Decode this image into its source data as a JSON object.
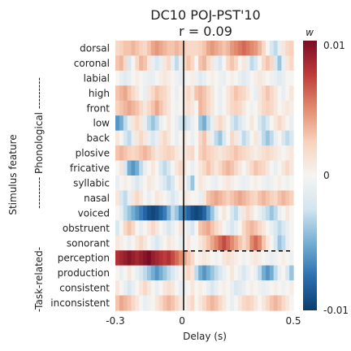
{
  "chart_data": {
    "type": "heatmap",
    "title": "DC10 POJ-PST'10",
    "subtitle": "r = 0.09",
    "xlabel": "Delay (s)",
    "ylabel": "Stimulus feature",
    "group_labels": {
      "phonological": "--------- Phonological ---------",
      "task": "-Task-related-"
    },
    "x_ticks": [
      "-0.3",
      "0",
      "0.5"
    ],
    "xlim": [
      -0.3,
      0.5
    ],
    "rows": [
      "dorsal",
      "coronal",
      "labial",
      "high",
      "front",
      "low",
      "back",
      "plosive",
      "fricative",
      "syllabic",
      "nasal",
      "voiced",
      "obstruent",
      "sonorant",
      "perception",
      "production",
      "consistent",
      "inconsistent"
    ],
    "colorbar": {
      "label": "w",
      "ticks": [
        "0.01",
        "0",
        "-0.01"
      ],
      "range": [
        -0.01,
        0.01
      ],
      "colormap": [
        "#0b3d6e",
        "#2b6fb0",
        "#74afd3",
        "#d2e5f0",
        "#f6f4f1",
        "#f8d2bd",
        "#e28a6c",
        "#bd3b3a",
        "#7a0c23"
      ]
    },
    "vertical_line_x": 0,
    "divider_after_row": "sonorant",
    "values": [
      [
        0.2,
        0.25,
        0.3,
        0.3,
        0.35,
        0.3,
        0.25,
        0.2,
        0.3,
        0.4,
        0.45,
        0.4,
        0.35,
        0.3,
        0.3,
        0.35,
        0.3,
        0.25,
        0.2,
        0.2,
        0.2,
        0.25,
        0.3,
        0.4,
        0.45,
        0.4,
        0.35,
        0.3,
        0.35,
        0.45,
        0.5,
        0.55,
        0.6,
        0.55,
        0.5,
        0.45,
        0.35,
        0.2,
        0.0,
        -0.2,
        -0.3,
        -0.1,
        0.1,
        0.2,
        0.25
      ],
      [
        0.3,
        0.35,
        0.2,
        -0.2,
        0.0,
        0.2,
        0.35,
        0.3,
        0.1,
        -0.1,
        -0.2,
        -0.1,
        0.1,
        0.2,
        -0.1,
        -0.3,
        -0.1,
        0.2,
        0.3,
        0.2,
        0.0,
        0.3,
        0.35,
        0.2,
        0.1,
        -0.1,
        -0.2,
        0.0,
        0.2,
        0.3,
        0.2,
        0.0,
        0.1,
        -0.1,
        -0.3,
        -0.2,
        0.0,
        0.2,
        0.3,
        0.2,
        -0.2,
        -0.4,
        -0.1,
        0.1,
        0.2
      ],
      [
        0.0,
        -0.1,
        -0.15,
        -0.1,
        0.0,
        0.05,
        0.0,
        -0.05,
        -0.1,
        -0.1,
        0.0,
        0.05,
        0.1,
        0.05,
        0.0,
        -0.05,
        -0.1,
        -0.05,
        0.0,
        0.05,
        -0.05,
        -0.15,
        -0.1,
        0.0,
        0.05,
        0.0,
        -0.05,
        -0.1,
        0.0,
        0.05,
        0.0,
        -0.1,
        -0.15,
        -0.1,
        0.0,
        0.05,
        0.1,
        0.05,
        0.0,
        -0.05,
        -0.1,
        -0.15,
        -0.1,
        0.0,
        0.0
      ],
      [
        0.3,
        0.35,
        0.4,
        0.3,
        0.2,
        0.1,
        0.0,
        -0.1,
        0.1,
        0.2,
        0.3,
        0.25,
        0.2,
        0.1,
        0.0,
        -0.1,
        0.0,
        0.1,
        0.2,
        0.1,
        0.3,
        0.35,
        0.3,
        0.2,
        0.1,
        0.0,
        -0.1,
        0.0,
        0.1,
        0.2,
        0.3,
        0.25,
        0.2,
        0.1,
        0.0,
        -0.1,
        0.1,
        0.2,
        0.3,
        0.2,
        0.1,
        0.0,
        -0.1,
        0.0,
        0.1
      ],
      [
        0.25,
        0.3,
        0.35,
        0.4,
        0.35,
        0.3,
        0.2,
        0.1,
        0.2,
        0.3,
        0.4,
        0.3,
        0.2,
        0.1,
        0.0,
        -0.05,
        0.0,
        0.1,
        0.15,
        0.1,
        0.0,
        0.35,
        0.3,
        0.2,
        0.1,
        0.0,
        -0.1,
        0.0,
        0.1,
        0.2,
        0.25,
        0.2,
        0.1,
        0.0,
        -0.05,
        0.0,
        0.1,
        0.2,
        0.25,
        0.2,
        0.1,
        0.0,
        0.05,
        0.1,
        0.05
      ],
      [
        -0.6,
        -0.5,
        -0.3,
        -0.1,
        0.1,
        0.2,
        0.1,
        -0.1,
        -0.3,
        -0.4,
        -0.3,
        -0.1,
        0.0,
        0.1,
        0.0,
        -0.1,
        -0.2,
        -0.3,
        -0.2,
        -0.1,
        0.0,
        -0.4,
        -0.5,
        -0.3,
        -0.1,
        0.1,
        0.2,
        0.1,
        0.0,
        -0.2,
        -0.3,
        -0.2,
        -0.1,
        0.0,
        0.1,
        0.0,
        -0.2,
        -0.3,
        -0.2,
        0.0,
        0.1,
        0.2,
        0.1,
        0.0,
        -0.1
      ],
      [
        0.1,
        0.0,
        -0.2,
        -0.3,
        -0.1,
        0.1,
        0.2,
        0.1,
        -0.1,
        -0.2,
        -0.1,
        0.1,
        0.2,
        0.1,
        0.0,
        -0.1,
        0.0,
        0.1,
        0.0,
        -0.1,
        0.0,
        0.2,
        0.3,
        0.1,
        -0.1,
        -0.3,
        -0.4,
        -0.2,
        0.0,
        0.2,
        0.1,
        -0.1,
        -0.3,
        -0.2,
        0.0,
        0.1,
        -0.1,
        -0.3,
        -0.4,
        -0.3,
        -0.1,
        0.0,
        -0.2,
        -0.3,
        -0.2
      ],
      [
        0.3,
        0.35,
        0.3,
        0.25,
        0.2,
        0.25,
        0.3,
        0.35,
        0.3,
        0.2,
        0.1,
        0.15,
        0.2,
        0.25,
        0.2,
        0.1,
        0.05,
        0.1,
        0.15,
        0.2,
        0.0,
        0.25,
        0.3,
        0.25,
        0.2,
        0.15,
        0.1,
        0.15,
        0.2,
        0.25,
        0.3,
        0.25,
        0.2,
        0.15,
        0.1,
        0.05,
        0.1,
        0.15,
        0.2,
        0.15,
        0.1,
        0.05,
        0.0,
        0.05,
        0.1
      ],
      [
        0.0,
        0.1,
        -0.2,
        -0.5,
        -0.6,
        -0.5,
        -0.3,
        -0.1,
        0.0,
        0.1,
        0.0,
        -0.2,
        -0.3,
        -0.2,
        0.0,
        0.1,
        0.2,
        0.1,
        0.0,
        -0.1,
        0.0,
        0.1,
        0.2,
        0.3,
        0.2,
        0.1,
        0.2,
        0.3,
        0.35,
        0.3,
        0.2,
        0.1,
        0.0,
        0.1,
        0.2,
        0.3,
        0.25,
        0.2,
        0.1,
        0.0,
        -0.1,
        0.0,
        0.1,
        0.2,
        0.1
      ],
      [
        -0.1,
        0.0,
        0.05,
        0.0,
        -0.1,
        -0.2,
        -0.1,
        0.0,
        0.1,
        0.05,
        0.0,
        -0.1,
        -0.2,
        -0.3,
        -0.2,
        0.0,
        0.1,
        0.0,
        -0.2,
        -0.4,
        0.0,
        0.1,
        0.05,
        0.0,
        -0.05,
        -0.1,
        0.0,
        0.05,
        0.1,
        0.05,
        0.0,
        -0.05,
        -0.1,
        -0.05,
        0.0,
        0.05,
        0.0,
        -0.05,
        -0.1,
        -0.05,
        0.0,
        0.05,
        0.0,
        -0.05,
        0.0
      ],
      [
        0.1,
        -0.2,
        -0.3,
        -0.1,
        0.1,
        0.2,
        0.1,
        0.0,
        -0.1,
        0.0,
        0.1,
        0.05,
        0.0,
        -0.1,
        -0.2,
        -0.1,
        0.0,
        0.1,
        0.05,
        0.0,
        0.0,
        -0.1,
        0.1,
        0.3,
        0.35,
        0.4,
        0.35,
        0.3,
        0.25,
        0.3,
        0.35,
        0.4,
        0.35,
        0.3,
        0.25,
        0.2,
        0.3,
        0.35,
        0.3,
        0.25,
        0.2,
        0.3,
        0.35,
        0.3,
        0.25
      ],
      [
        0.0,
        -0.1,
        -0.3,
        -0.4,
        -0.5,
        -0.6,
        -0.7,
        -0.8,
        -0.9,
        -0.95,
        -0.9,
        -0.8,
        -0.7,
        -0.5,
        -0.3,
        -0.4,
        -0.6,
        -0.7,
        -0.8,
        -0.9,
        -0.95,
        -0.9,
        -0.8,
        -0.6,
        -0.4,
        -0.2,
        0.0,
        0.1,
        0.0,
        -0.2,
        -0.3,
        -0.1,
        0.1,
        0.2,
        0.1,
        0.0,
        -0.1,
        -0.2,
        -0.3,
        -0.4,
        -0.3,
        -0.1,
        0.0,
        0.1,
        0.0
      ],
      [
        -0.2,
        0.0,
        0.2,
        0.3,
        0.2,
        0.0,
        -0.1,
        0.0,
        0.1,
        0.2,
        0.1,
        0.0,
        -0.1,
        -0.2,
        -0.1,
        0.0,
        0.1,
        0.0,
        -0.1,
        -0.2,
        0.0,
        0.3,
        0.35,
        0.4,
        0.3,
        0.2,
        0.1,
        0.0,
        -0.1,
        -0.2,
        -0.1,
        0.0,
        0.2,
        0.3,
        0.35,
        0.3,
        0.2,
        0.1,
        0.0,
        -0.1,
        -0.2,
        -0.3,
        -0.2,
        -0.1,
        0.0
      ],
      [
        0.1,
        0.05,
        0.0,
        -0.1,
        0.0,
        0.1,
        0.2,
        0.1,
        0.0,
        -0.1,
        -0.2,
        -0.1,
        0.0,
        0.1,
        0.05,
        0.0,
        -0.1,
        0.0,
        0.1,
        0.0,
        0.0,
        0.1,
        0.2,
        0.3,
        0.4,
        0.5,
        0.6,
        0.7,
        0.6,
        0.5,
        0.4,
        0.3,
        0.2,
        0.3,
        0.5,
        0.6,
        0.5,
        0.3,
        0.1,
        0.0,
        -0.2,
        -0.4,
        -0.3,
        -0.1,
        0.0
      ],
      [
        0.8,
        0.85,
        0.9,
        0.95,
        0.9,
        0.85,
        0.9,
        0.95,
        1.0,
        0.9,
        0.85,
        0.8,
        0.75,
        0.8,
        0.7,
        0.6,
        0.5,
        0.4,
        0.3,
        0.2,
        0.0,
        0.05,
        0.1,
        0.05,
        0.0,
        -0.05,
        0.0,
        0.1,
        0.15,
        0.1,
        0.05,
        0.0,
        -0.05,
        0.0,
        0.05,
        0.1,
        0.05,
        0.0,
        -0.05,
        -0.1,
        -0.05,
        0.0,
        0.05,
        0.0,
        -0.05
      ],
      [
        0.0,
        -0.1,
        0.0,
        0.1,
        0.0,
        -0.1,
        -0.2,
        -0.3,
        -0.4,
        -0.5,
        -0.6,
        -0.5,
        -0.4,
        -0.3,
        -0.2,
        -0.1,
        0.0,
        0.1,
        0.2,
        0.1,
        -0.3,
        -0.5,
        -0.6,
        -0.5,
        -0.4,
        -0.3,
        -0.2,
        -0.1,
        0.0,
        0.1,
        0.0,
        -0.1,
        -0.2,
        -0.1,
        0.0,
        -0.1,
        -0.3,
        -0.5,
        -0.6,
        -0.5,
        -0.3,
        -0.1,
        0.0,
        -0.2,
        -0.4
      ],
      [
        0.1,
        0.0,
        -0.1,
        -0.2,
        -0.1,
        0.0,
        0.1,
        0.2,
        0.1,
        0.0,
        -0.1,
        0.0,
        0.1,
        0.15,
        0.1,
        0.0,
        -0.1,
        -0.05,
        0.0,
        0.1,
        0.0,
        0.05,
        0.0,
        -0.1,
        -0.2,
        -0.1,
        0.0,
        0.05,
        0.0,
        -0.1,
        -0.2,
        -0.15,
        -0.1,
        0.0,
        0.05,
        0.0,
        -0.05,
        -0.1,
        -0.05,
        0.0,
        0.05,
        0.0,
        -0.05,
        0.0,
        0.05
      ],
      [
        0.3,
        0.4,
        0.35,
        0.3,
        0.2,
        0.1,
        0.0,
        -0.1,
        -0.05,
        0.0,
        0.1,
        0.2,
        0.3,
        0.35,
        0.3,
        0.2,
        0.1,
        0.0,
        0.1,
        0.2,
        0.0,
        0.1,
        0.2,
        0.3,
        0.35,
        0.3,
        0.2,
        0.1,
        0.0,
        -0.1,
        0.0,
        0.1,
        0.2,
        0.25,
        0.2,
        0.1,
        0.0,
        0.1,
        0.2,
        0.3,
        0.35,
        0.3,
        0.2,
        0.1,
        0.0
      ]
    ]
  }
}
